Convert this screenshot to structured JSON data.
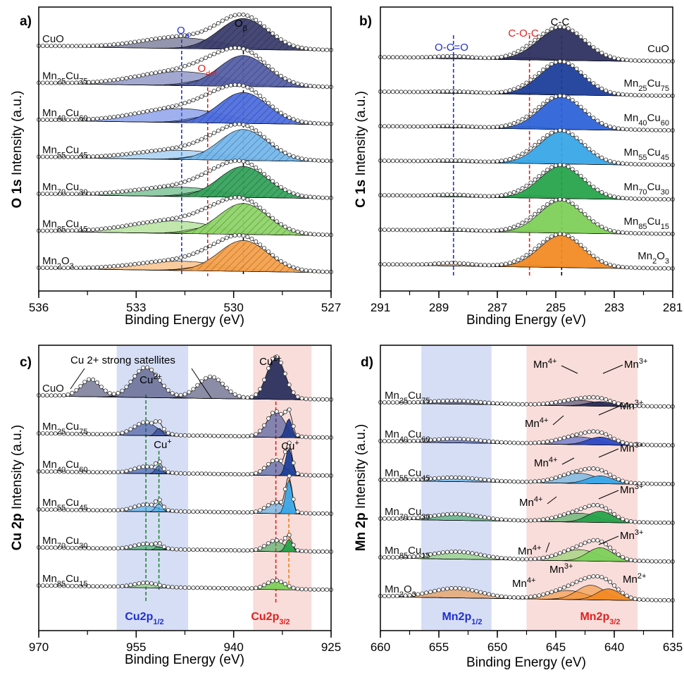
{
  "panels": [
    {
      "letter": "a)",
      "xlabel": "Binding Energy (eV)",
      "ylabel_bold": "O 1s",
      "ylabel_rest": " Intensity (a.u.)",
      "ticks": [
        "536",
        "533",
        "530",
        "527"
      ]
    },
    {
      "letter": "b)",
      "xlabel": "Binding Energy (eV)",
      "ylabel_bold": "C 1s",
      "ylabel_rest": " Intensity (a.u.)",
      "ticks": [
        "291",
        "289",
        "287",
        "285",
        "283",
        "281"
      ]
    },
    {
      "letter": "c)",
      "xlabel": "Binding Energy (eV)",
      "ylabel_bold": "Cu 2p",
      "ylabel_rest": " Intensity (a.u.)",
      "ticks": [
        "970",
        "955",
        "940",
        "925"
      ]
    },
    {
      "letter": "d)",
      "xlabel": "Binding Energy (eV)",
      "ylabel_bold": "Mn 2p",
      "ylabel_rest": " Intensity (a.u.)",
      "ticks": [
        "660",
        "655",
        "650",
        "645",
        "640",
        "635"
      ]
    }
  ],
  "samples_a": [
    "CuO",
    "Mn25Cu75",
    "Mn40Cu60",
    "Mn55Cu45",
    "Mn70Cu30",
    "Mn85Cu15",
    "Mn2O3"
  ],
  "samples_b": [
    "CuO",
    "Mn25Cu75",
    "Mn40Cu60",
    "Mn55Cu45",
    "Mn70Cu30",
    "Mn85Cu15",
    "Mn2O3"
  ],
  "samples_c": [
    "CuO",
    "Mn25Cu75",
    "Mn40Cu60",
    "Mn55Cu45",
    "Mn70Cu30",
    "Mn85Cu15"
  ],
  "samples_d": [
    "Mn25Cu75",
    "Mn40Cu60",
    "Mn55Cu45",
    "Mn70Cu30",
    "Mn85Cu15",
    "Mn2O3"
  ],
  "annotations": {
    "o_alpha": "Oα",
    "o_beta": "Oβ",
    "o_def": "Odef",
    "occo": "O-C=O",
    "coc": "C-O-C",
    "cc": "C-C",
    "cu2_sat": "Cu 2+ strong satellites",
    "cu2plus": "Cu2+",
    "cuplus": "Cu+",
    "mn4plus": "Mn4+",
    "mn3plus": "Mn3+",
    "mn2plus": "Mn2+",
    "cu2p12": "Cu2p1/2",
    "cu2p32": "Cu2p3/2",
    "mn2p12": "Mn2p1/2",
    "mn2p32": "Mn2p3/2"
  },
  "colors": {
    "navy": "#2b2f5e",
    "blue_dark": "#1b3f9a",
    "blue_mid": "#2f62d8",
    "sky": "#3aa6e8",
    "green": "#27a24a",
    "lime": "#7dd05a",
    "orange": "#f28a24",
    "red_line": "#e02020",
    "blue_line": "#1f2fd0",
    "green_line": "#1e8a2e",
    "orange_line": "#f07d1a",
    "blue_band": "#cfd8f4",
    "red_band": "#f8d7d4"
  },
  "chart_data": [
    {
      "type": "line",
      "title": "",
      "xlabel": "Binding Energy (eV)",
      "ylabel": "O 1s Intensity (a.u.)",
      "xlim": [
        536,
        527
      ],
      "xticks": [
        536,
        533,
        530,
        527
      ],
      "series": [
        {
          "name": "CuO",
          "peaks": [
            {
              "label": "Oα",
              "center": 531.6,
              "height": 0.35,
              "width": 1.2
            },
            {
              "label": "Oβ",
              "center": 529.7,
              "height": 1.0,
              "width": 0.75
            }
          ]
        },
        {
          "name": "Mn25Cu75",
          "peaks": [
            {
              "label": "Oα",
              "center": 531.6,
              "height": 0.45,
              "width": 1.3
            },
            {
              "label": "Odef",
              "center": 530.8,
              "height": 0.2,
              "width": 0.6
            },
            {
              "label": "Oβ",
              "center": 529.7,
              "height": 1.0,
              "width": 0.75
            }
          ]
        },
        {
          "name": "Mn40Cu60",
          "peaks": [
            {
              "label": "Oα",
              "center": 531.6,
              "height": 0.45,
              "width": 1.3
            },
            {
              "label": "Odef",
              "center": 530.8,
              "height": 0.2,
              "width": 0.6
            },
            {
              "label": "Oβ",
              "center": 529.7,
              "height": 1.0,
              "width": 0.75
            }
          ]
        },
        {
          "name": "Mn55Cu45",
          "peaks": [
            {
              "label": "Oα",
              "center": 531.6,
              "height": 0.3,
              "width": 1.3
            },
            {
              "label": "Odef",
              "center": 530.8,
              "height": 0.15,
              "width": 0.6
            },
            {
              "label": "Oβ",
              "center": 529.7,
              "height": 1.0,
              "width": 0.75
            }
          ]
        },
        {
          "name": "Mn70Cu30",
          "peaks": [
            {
              "label": "Oα",
              "center": 531.6,
              "height": 0.3,
              "width": 1.3
            },
            {
              "label": "Odef",
              "center": 530.8,
              "height": 0.2,
              "width": 0.6
            },
            {
              "label": "Oβ",
              "center": 529.7,
              "height": 1.0,
              "width": 0.75
            }
          ]
        },
        {
          "name": "Mn85Cu15",
          "peaks": [
            {
              "label": "Oα",
              "center": 531.8,
              "height": 0.4,
              "width": 1.3
            },
            {
              "label": "Odef",
              "center": 530.8,
              "height": 0.2,
              "width": 0.6
            },
            {
              "label": "Oβ",
              "center": 529.7,
              "height": 1.0,
              "width": 0.75
            }
          ]
        },
        {
          "name": "Mn2O3",
          "peaks": [
            {
              "label": "Oα",
              "center": 531.6,
              "height": 0.3,
              "width": 1.3
            },
            {
              "label": "Odef",
              "center": 530.8,
              "height": 0.15,
              "width": 0.6
            },
            {
              "label": "Oβ",
              "center": 529.7,
              "height": 1.0,
              "width": 0.75
            }
          ]
        }
      ],
      "reference_lines": [
        {
          "label": "Oα",
          "x": 531.6
        },
        {
          "label": "Odef",
          "x": 530.8
        },
        {
          "label": "Oβ",
          "x": 529.7
        }
      ]
    },
    {
      "type": "line",
      "title": "",
      "xlabel": "Binding Energy (eV)",
      "ylabel": "C 1s Intensity (a.u.)",
      "xlim": [
        291,
        281
      ],
      "xticks": [
        291,
        289,
        287,
        285,
        283,
        281
      ],
      "series": [
        {
          "name": "CuO",
          "peaks": [
            {
              "label": "O-C=O",
              "center": 288.5,
              "height": 0.06,
              "width": 0.6
            },
            {
              "label": "C-O-C",
              "center": 285.9,
              "height": 0.08,
              "width": 0.6
            },
            {
              "label": "C-C",
              "center": 284.8,
              "height": 1.0,
              "width": 0.8
            }
          ]
        },
        {
          "name": "Mn25Cu75",
          "peaks": [
            {
              "label": "O-C=O",
              "center": 288.5,
              "height": 0.04,
              "width": 0.6
            },
            {
              "label": "C-O-C",
              "center": 285.9,
              "height": 0.06,
              "width": 0.6
            },
            {
              "label": "C-C",
              "center": 284.8,
              "height": 1.0,
              "width": 0.75
            }
          ]
        },
        {
          "name": "Mn40Cu60",
          "peaks": [
            {
              "label": "O-C=O",
              "center": 288.5,
              "height": 0.04,
              "width": 0.6
            },
            {
              "label": "C-O-C",
              "center": 285.9,
              "height": 0.08,
              "width": 0.6
            },
            {
              "label": "C-C",
              "center": 284.8,
              "height": 1.0,
              "width": 0.75
            }
          ]
        },
        {
          "name": "Mn55Cu45",
          "peaks": [
            {
              "label": "O-C=O",
              "center": 288.5,
              "height": 0.04,
              "width": 0.6
            },
            {
              "label": "C-O-C",
              "center": 285.9,
              "height": 0.08,
              "width": 0.6
            },
            {
              "label": "C-C",
              "center": 284.8,
              "height": 1.0,
              "width": 0.75
            }
          ]
        },
        {
          "name": "Mn70Cu30",
          "peaks": [
            {
              "label": "O-C=O",
              "center": 288.5,
              "height": 0.05,
              "width": 0.6
            },
            {
              "label": "C-O-C",
              "center": 285.9,
              "height": 0.08,
              "width": 0.6
            },
            {
              "label": "C-C",
              "center": 284.8,
              "height": 1.0,
              "width": 0.75
            }
          ]
        },
        {
          "name": "Mn85Cu15",
          "peaks": [
            {
              "label": "O-C=O",
              "center": 288.5,
              "height": 0.04,
              "width": 0.6
            },
            {
              "label": "C-O-C",
              "center": 285.9,
              "height": 0.08,
              "width": 0.6
            },
            {
              "label": "C-C",
              "center": 284.8,
              "height": 1.0,
              "width": 0.75
            }
          ]
        },
        {
          "name": "Mn2O3",
          "peaks": [
            {
              "label": "O-C=O",
              "center": 288.5,
              "height": 0.07,
              "width": 0.6
            },
            {
              "label": "C-O-C",
              "center": 285.9,
              "height": 0.07,
              "width": 0.6
            },
            {
              "label": "C-C",
              "center": 284.8,
              "height": 1.0,
              "width": 0.75
            }
          ]
        }
      ],
      "reference_lines": [
        {
          "label": "O-C=O",
          "x": 288.5
        },
        {
          "label": "C-O-C",
          "x": 285.9
        },
        {
          "label": "C-C",
          "x": 284.8
        }
      ]
    },
    {
      "type": "line",
      "title": "",
      "xlabel": "Binding Energy (eV)",
      "ylabel": "Cu 2p Intensity (a.u.)",
      "xlim": [
        970,
        925
      ],
      "xticks": [
        970,
        955,
        940,
        925
      ],
      "series": [
        {
          "name": "CuO",
          "peaks": [
            {
              "label": "Cu 2+ satellite",
              "center": 962,
              "height": 0.4,
              "width": 1.5
            },
            {
              "label": "Cu2+",
              "center": 953.5,
              "height": 0.7,
              "width": 2.0
            },
            {
              "label": "Cu 2+ satellite",
              "center": 943.5,
              "height": 0.5,
              "width": 2.0
            },
            {
              "label": "Cu2+",
              "center": 933.5,
              "height": 1.0,
              "width": 1.4
            }
          ]
        },
        {
          "name": "Mn25Cu75",
          "peaks": [
            {
              "label": "Cu2+",
              "center": 953.5,
              "height": 0.3,
              "width": 1.8
            },
            {
              "label": "Cu+",
              "center": 951.5,
              "height": 0.18,
              "width": 0.5
            },
            {
              "label": "Cu2+",
              "center": 933.5,
              "height": 0.6,
              "width": 1.4
            },
            {
              "label": "Cu+",
              "center": 931.5,
              "height": 0.45,
              "width": 0.5
            }
          ]
        },
        {
          "name": "Mn40Cu60",
          "peaks": [
            {
              "label": "Cu2+",
              "center": 953.5,
              "height": 0.15,
              "width": 1.8
            },
            {
              "label": "Cu+",
              "center": 951.5,
              "height": 0.2,
              "width": 0.5
            },
            {
              "label": "Cu2+",
              "center": 933.5,
              "height": 0.35,
              "width": 1.4
            },
            {
              "label": "Cu+",
              "center": 931.5,
              "height": 0.65,
              "width": 0.5
            }
          ]
        },
        {
          "name": "Mn55Cu45",
          "peaks": [
            {
              "label": "Cu2+",
              "center": 953.5,
              "height": 0.15,
              "width": 1.8
            },
            {
              "label": "Cu+",
              "center": 951.5,
              "height": 0.2,
              "width": 0.5
            },
            {
              "label": "Cu2+",
              "center": 933.5,
              "height": 0.25,
              "width": 1.4
            },
            {
              "label": "Cu+",
              "center": 931.5,
              "height": 0.8,
              "width": 0.5
            }
          ]
        },
        {
          "name": "Mn70Cu30",
          "peaks": [
            {
              "label": "Cu2+",
              "center": 953.5,
              "height": 0.12,
              "width": 1.8
            },
            {
              "label": "Cu+",
              "center": 951.5,
              "height": 0.08,
              "width": 0.5
            },
            {
              "label": "Cu2+",
              "center": 933.5,
              "height": 0.25,
              "width": 1.4
            },
            {
              "label": "Cu+",
              "center": 931.5,
              "height": 0.3,
              "width": 0.5
            }
          ]
        },
        {
          "name": "Mn85Cu15",
          "peaks": [
            {
              "label": "Cu2+",
              "center": 953.5,
              "height": 0.1,
              "width": 1.8
            },
            {
              "label": "Cu2+",
              "center": 933.5,
              "height": 0.2,
              "width": 1.4
            }
          ]
        }
      ],
      "reference_lines": [
        {
          "label": "Cu2+",
          "x": 953.5
        },
        {
          "label": "Cu+",
          "x": 951.5
        },
        {
          "label": "Cu2+",
          "x": 933.5
        },
        {
          "label": "Cu+",
          "x": 931.5
        }
      ],
      "regions": [
        {
          "label": "Cu2p1/2",
          "from": 958,
          "to": 947
        },
        {
          "label": "Cu2p3/2",
          "from": 937,
          "to": 928
        }
      ]
    },
    {
      "type": "line",
      "title": "",
      "xlabel": "Binding Energy (eV)",
      "ylabel": "Mn 2p Intensity (a.u.)",
      "xlim": [
        660,
        635
      ],
      "xticks": [
        660,
        655,
        650,
        645,
        640,
        635
      ],
      "series": [
        {
          "name": "Mn25Cu75",
          "peaks": [
            {
              "label": "Mn2p1/2",
              "center": 653.5,
              "height": 0.12,
              "width": 2.0
            },
            {
              "label": "Mn4+",
              "center": 643,
              "height": 0.25,
              "width": 1.6
            },
            {
              "label": "Mn3+",
              "center": 641.2,
              "height": 0.2,
              "width": 1.1
            }
          ]
        },
        {
          "name": "Mn40Cu60",
          "peaks": [
            {
              "label": "Mn2p1/2",
              "center": 653.5,
              "height": 0.15,
              "width": 2.0
            },
            {
              "label": "Mn4+",
              "center": 643,
              "height": 0.35,
              "width": 1.6
            },
            {
              "label": "Mn3+",
              "center": 641.2,
              "height": 0.35,
              "width": 1.1
            }
          ]
        },
        {
          "name": "Mn55Cu45",
          "peaks": [
            {
              "label": "Mn2p1/2",
              "center": 653.5,
              "height": 0.15,
              "width": 2.0
            },
            {
              "label": "Mn4+",
              "center": 643,
              "height": 0.45,
              "width": 1.6
            },
            {
              "label": "Mn3+",
              "center": 641.2,
              "height": 0.35,
              "width": 1.1
            }
          ]
        },
        {
          "name": "Mn70Cu30",
          "peaks": [
            {
              "label": "Mn2p1/2",
              "center": 653.5,
              "height": 0.25,
              "width": 2.0
            },
            {
              "label": "Mn4+",
              "center": 643,
              "height": 0.4,
              "width": 1.6
            },
            {
              "label": "Mn3+",
              "center": 641.2,
              "height": 0.5,
              "width": 1.1
            }
          ]
        },
        {
          "name": "Mn85Cu15",
          "peaks": [
            {
              "label": "Mn2p1/2",
              "center": 653.5,
              "height": 0.3,
              "width": 2.0
            },
            {
              "label": "Mn4+",
              "center": 643,
              "height": 0.5,
              "width": 1.6
            },
            {
              "label": "Mn3+",
              "center": 641.2,
              "height": 0.6,
              "width": 1.1
            }
          ]
        },
        {
          "name": "Mn2O3",
          "peaks": [
            {
              "label": "Mn2p1/2",
              "center": 653.5,
              "height": 0.4,
              "width": 2.0
            },
            {
              "label": "Mn4+",
              "center": 644,
              "height": 0.4,
              "width": 1.6
            },
            {
              "label": "Mn3+",
              "center": 642,
              "height": 0.65,
              "width": 1.2
            },
            {
              "label": "Mn2+",
              "center": 640.5,
              "height": 0.5,
              "width": 1.0
            }
          ]
        }
      ],
      "regions": [
        {
          "label": "Mn2p1/2",
          "from": 656.5,
          "to": 650.5
        },
        {
          "label": "Mn2p3/2",
          "from": 647.5,
          "to": 638
        }
      ]
    }
  ]
}
